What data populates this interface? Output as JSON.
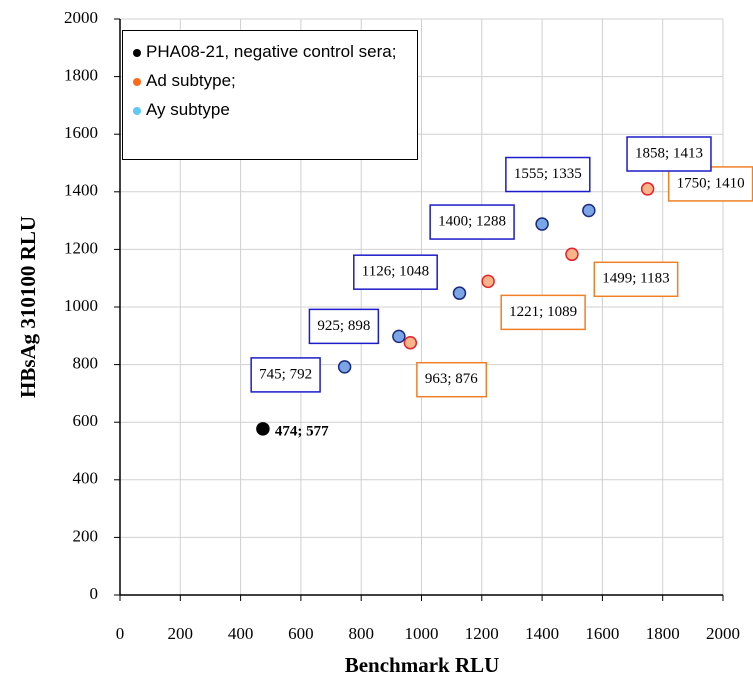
{
  "chart_data": {
    "type": "scatter",
    "x_label": "Benchmark RLU",
    "y_label": "HBsAg 310100 RLU",
    "xlim": [
      0,
      2000
    ],
    "xticks": [
      0,
      200,
      400,
      600,
      800,
      1000,
      1200,
      1400,
      1600,
      1800,
      2000
    ],
    "ylim": [
      0,
      2000
    ],
    "yticks": [
      0,
      200,
      400,
      600,
      800,
      1000,
      1200,
      1400,
      1600,
      1800,
      2000
    ],
    "grid": true,
    "legend": "upper left",
    "series": [
      {
        "name": "PHA08-21, negative control sera;",
        "color": "#000000",
        "fill": "#000000",
        "edge": "#000000",
        "x": [
          474
        ],
        "values": [
          577
        ],
        "value_labels": [
          "474; 577"
        ]
      },
      {
        "name": "Ad subtype;",
        "color": "#ff6a1a",
        "fill": "#f9b58a",
        "edge": "#e8202a",
        "x": [
          963,
          1221,
          1499,
          1750
        ],
        "values": [
          876,
          1089,
          1183,
          1410
        ],
        "value_labels": [
          "963; 876",
          "1221; 1089",
          "1499; 1183",
          "1750; 1410"
        ]
      },
      {
        "name": "Ay subtype",
        "color": "#5fc8f5",
        "fill": "#7aa6e6",
        "edge": "#1a2a80",
        "x": [
          745,
          925,
          1126,
          1400,
          1555
        ],
        "values": [
          792,
          898,
          1048,
          1288,
          1335
        ],
        "value_labels": [
          "745; 792",
          "925; 898",
          "1126; 1048",
          "1400; 1288",
          "1555; 1335"
        ]
      }
    ],
    "annotations": [
      "1858; 1413"
    ]
  }
}
